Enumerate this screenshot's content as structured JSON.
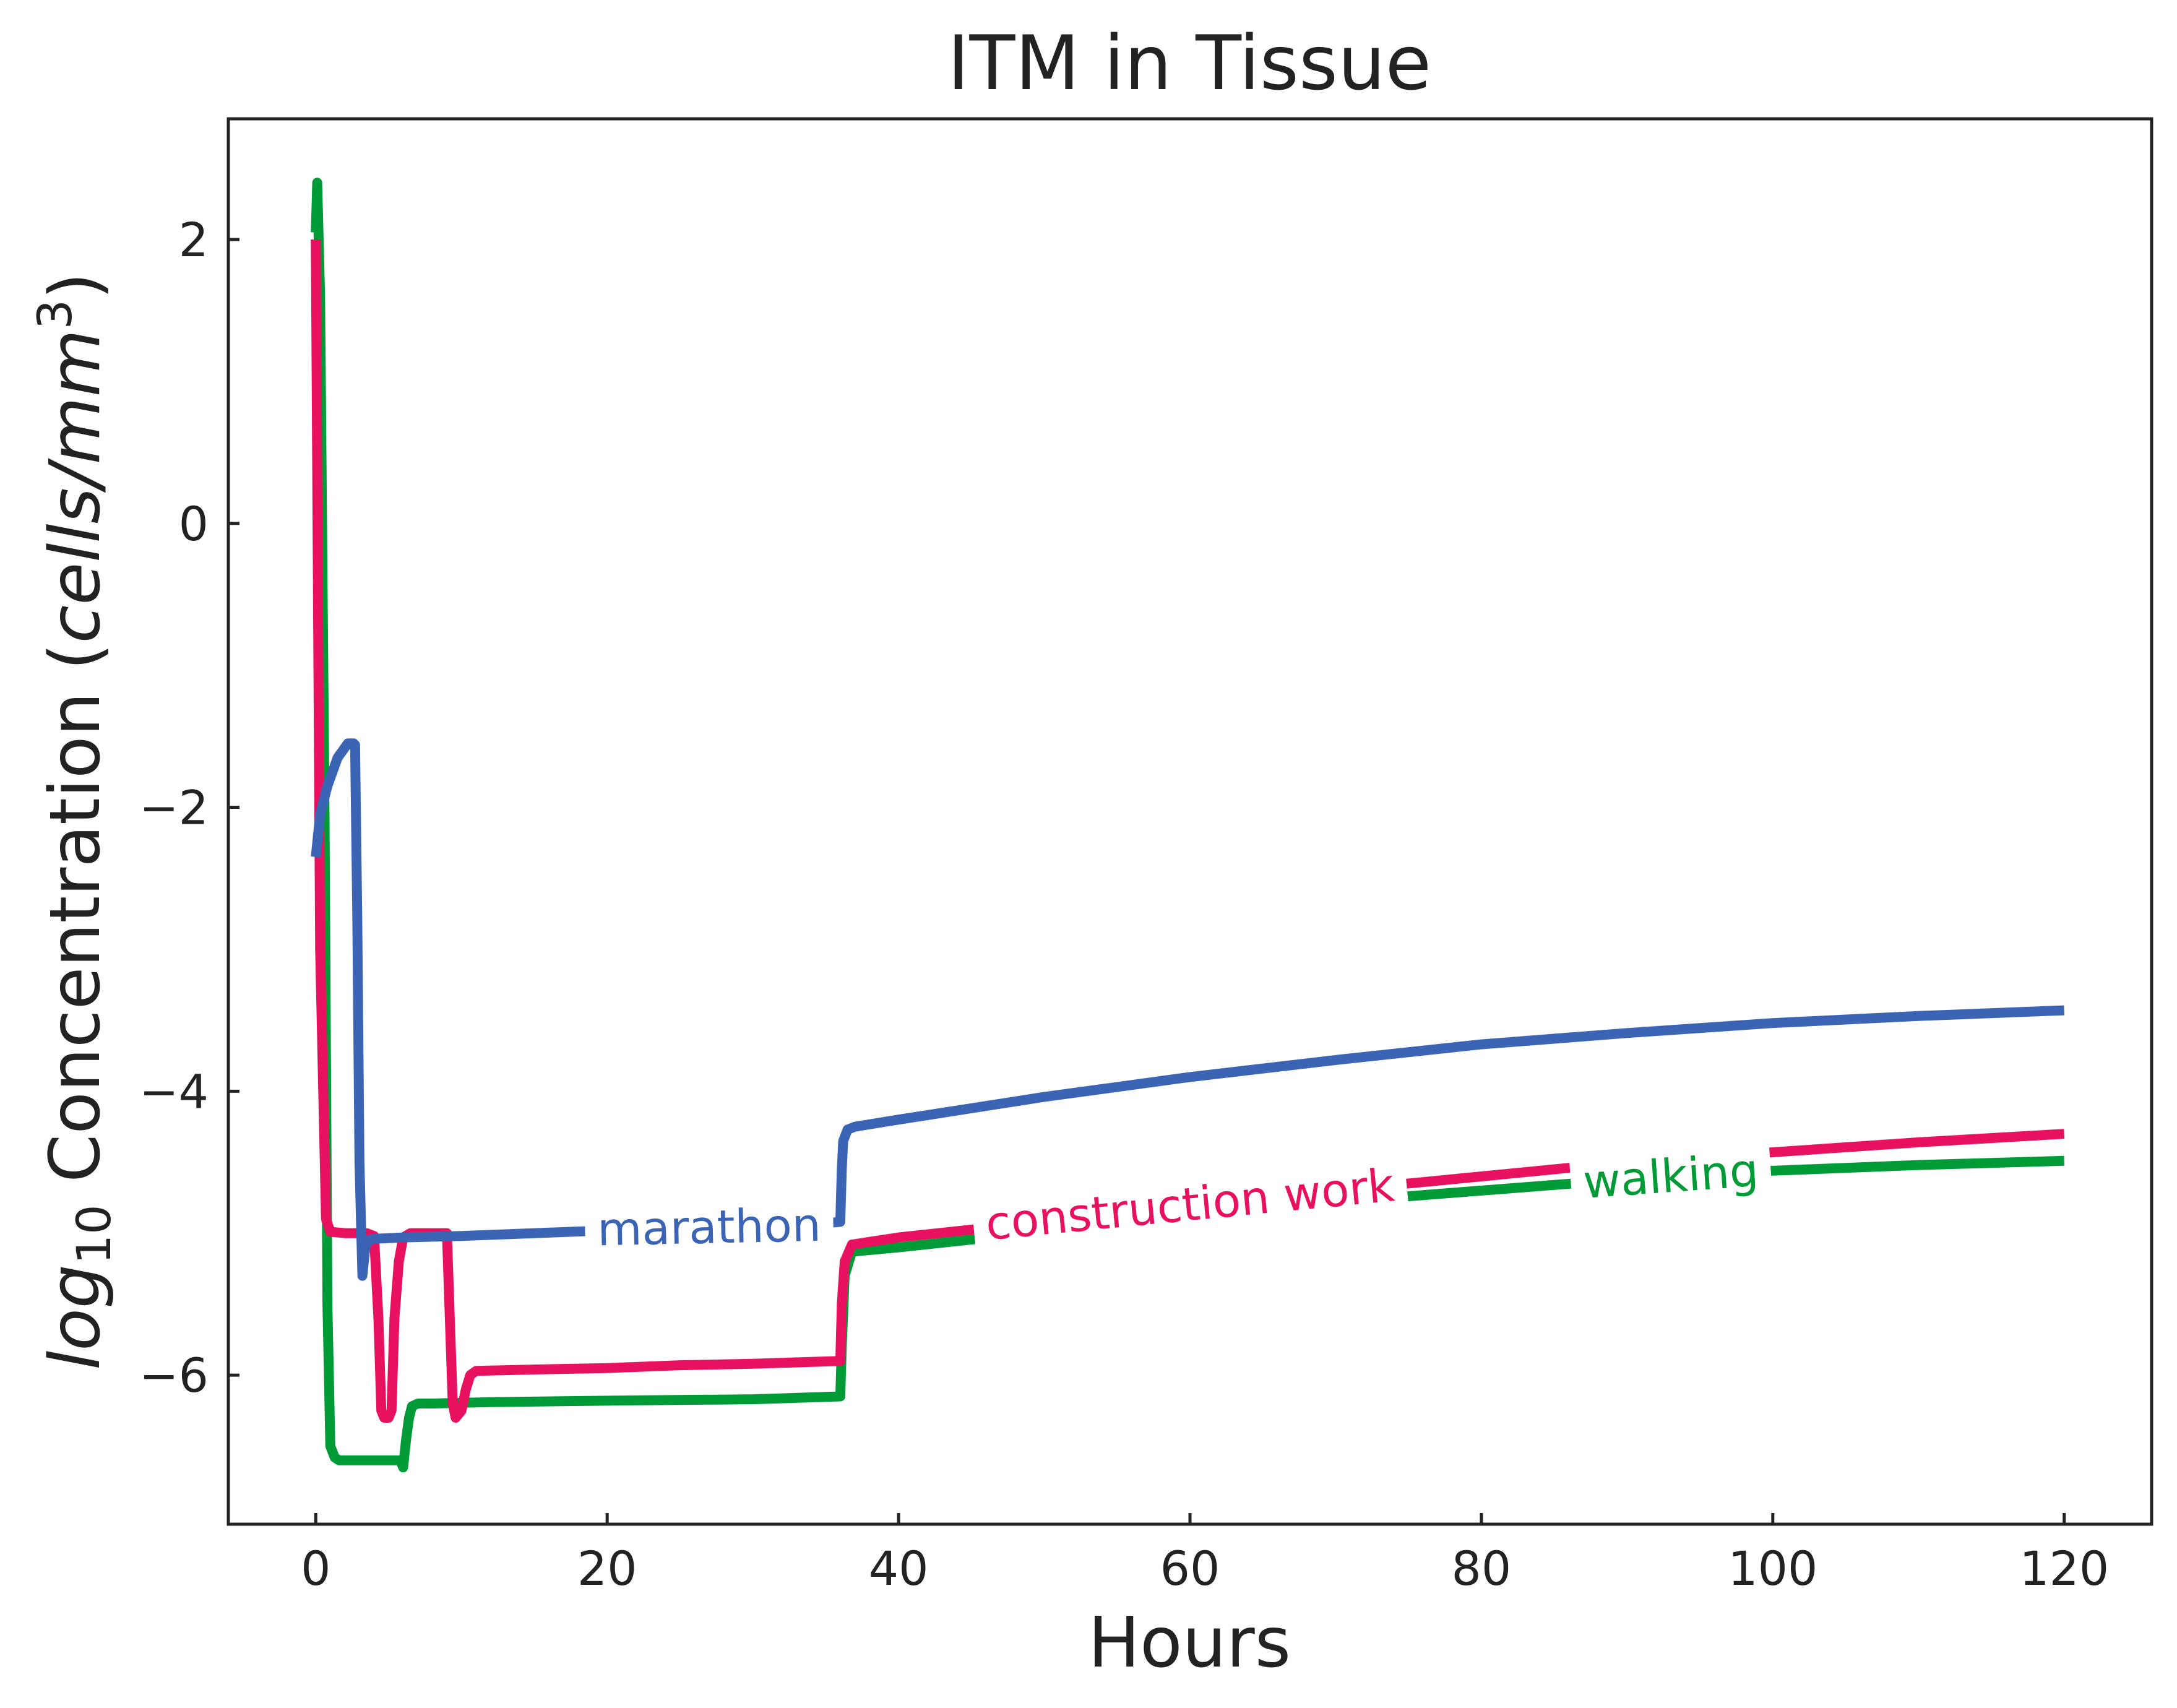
{
  "chart_data": {
    "type": "line",
    "title": "ITM in Tissue",
    "xlabel": "Hours",
    "ylabel": {
      "log": "log",
      "sub": "10",
      "text": " Concentration (",
      "units": "cells/mm",
      "sup": "3",
      "close": ")"
    },
    "xlim": [
      -6,
      126
    ],
    "ylim": [
      -7.05,
      2.85
    ],
    "xticks": [
      0,
      20,
      40,
      60,
      80,
      100,
      120
    ],
    "xtick_labels": [
      "0",
      "20",
      "40",
      "60",
      "80",
      "100",
      "120"
    ],
    "yticks": [
      2,
      0,
      -2,
      -4,
      -6
    ],
    "ytick_labels": [
      "2",
      "0",
      "−2",
      "−4",
      "−6"
    ],
    "grid": false,
    "legend": "inline labels on lines",
    "series": [
      {
        "name": "marathon",
        "color": "#3c64b4",
        "x": [
          0.0,
          0.3,
          0.8,
          1.5,
          2.2,
          2.6,
          2.7,
          2.85,
          3.0,
          3.2,
          3.4,
          3.6,
          4.0,
          6.0,
          10.0,
          15.0,
          20.0,
          25.0,
          30.0,
          35.0,
          36.0,
          36.1,
          36.2,
          36.5,
          37.0,
          40.0,
          45.0,
          50.0,
          55.0,
          60.0,
          70.0,
          80.0,
          90.0,
          100.0,
          110.0,
          120.0
        ],
        "y": [
          -2.35,
          -2.05,
          -1.85,
          -1.65,
          -1.55,
          -1.55,
          -1.56,
          -2.8,
          -4.5,
          -5.3,
          -5.1,
          -5.05,
          -5.04,
          -5.03,
          -5.02,
          -5.0,
          -4.98,
          -4.96,
          -4.95,
          -4.93,
          -4.92,
          -4.55,
          -4.35,
          -4.27,
          -4.25,
          -4.2,
          -4.12,
          -4.04,
          -3.97,
          -3.9,
          -3.78,
          -3.67,
          -3.59,
          -3.52,
          -3.47,
          -3.43
        ]
      },
      {
        "name": "construction work",
        "color": "#e8115f",
        "x": [
          0.0,
          0.3,
          0.7,
          1.0,
          2.0,
          3.5,
          4.0,
          4.3,
          4.5,
          4.7,
          5.0,
          5.2,
          5.4,
          5.7,
          6.0,
          6.5,
          7.0,
          9.0,
          9.2,
          9.4,
          9.6,
          10.0,
          10.3,
          10.6,
          11.0,
          15.0,
          20.0,
          25.0,
          30.0,
          36.0,
          36.1,
          36.3,
          36.8,
          40.0,
          50.0,
          60.0,
          70.0,
          80.0,
          90.0,
          100.0,
          110.0,
          120.0
        ],
        "y": [
          2.0,
          -3.0,
          -4.9,
          -4.99,
          -5.0,
          -5.0,
          -5.02,
          -5.6,
          -6.25,
          -6.3,
          -6.3,
          -6.25,
          -5.6,
          -5.2,
          -5.03,
          -5.0,
          -5.0,
          -5.0,
          -5.6,
          -6.2,
          -6.3,
          -6.25,
          -6.1,
          -6.0,
          -5.97,
          -5.96,
          -5.95,
          -5.93,
          -5.92,
          -5.9,
          -5.5,
          -5.2,
          -5.08,
          -5.03,
          -4.92,
          -4.81,
          -4.7,
          -4.6,
          -4.5,
          -4.43,
          -4.36,
          -4.3
        ]
      },
      {
        "name": "walking",
        "color": "#009a36",
        "x": [
          0.0,
          0.1,
          0.3,
          0.6,
          0.8,
          1.0,
          1.3,
          1.6,
          2.0,
          5.8,
          6.0,
          6.2,
          6.4,
          6.6,
          7.0,
          8.0,
          12.0,
          20.0,
          30.0,
          36.0,
          36.1,
          36.3,
          36.8,
          40.0,
          50.0,
          60.0,
          70.0,
          80.0,
          90.0,
          100.0,
          110.0,
          120.0
        ],
        "y": [
          2.05,
          2.4,
          1.6,
          -2.0,
          -5.5,
          -6.5,
          -6.58,
          -6.6,
          -6.6,
          -6.6,
          -6.65,
          -6.45,
          -6.3,
          -6.22,
          -6.2,
          -6.2,
          -6.19,
          -6.18,
          -6.17,
          -6.15,
          -5.8,
          -5.3,
          -5.13,
          -5.1,
          -4.99,
          -4.88,
          -4.78,
          -4.7,
          -4.62,
          -4.56,
          -4.52,
          -4.49
        ]
      }
    ],
    "inline_labels": [
      {
        "series": "marathon",
        "text": "marathon",
        "x": 27,
        "y": -4.96,
        "rotate": -1.2
      },
      {
        "series": "construction work",
        "text": "construction work",
        "x": 60,
        "y": -4.8,
        "rotate": -5.5
      },
      {
        "series": "walking",
        "text": "walking",
        "x": 93,
        "y": -4.6,
        "rotate": -4.0
      }
    ]
  }
}
